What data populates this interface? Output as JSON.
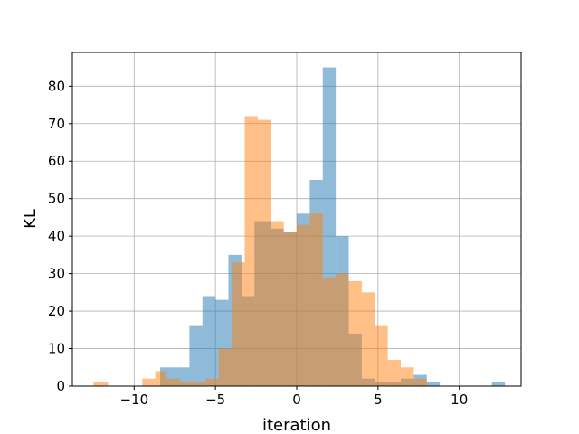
{
  "chart_data": {
    "type": "bar",
    "subtype": "overlapping-histogram",
    "title": "",
    "xlabel": "iteration",
    "ylabel": "KL",
    "xlim": [
      -13.8,
      13.8
    ],
    "ylim": [
      0,
      89
    ],
    "xticks": [
      -10,
      -5,
      0,
      5,
      10
    ],
    "yticks": [
      0,
      10,
      20,
      30,
      40,
      50,
      60,
      70,
      80
    ],
    "xtick_labels": [
      "−10",
      "−5",
      "0",
      "5",
      "10"
    ],
    "ytick_labels": [
      "0",
      "10",
      "20",
      "30",
      "40",
      "50",
      "60",
      "70",
      "80"
    ],
    "grid": true,
    "legend": "none",
    "series": [
      {
        "color": "#1f77b4",
        "alpha": 0.5,
        "bin_edges": [
          -8.4,
          -7.6,
          -6.6,
          -5.8,
          -5.0,
          -4.2,
          -3.4,
          -2.6,
          -1.6,
          -0.8,
          0.0,
          0.8,
          1.6,
          2.4,
          3.2,
          4.0,
          4.8,
          5.6,
          6.4,
          7.2,
          8.0,
          8.8,
          9.6,
          10.4,
          11.2,
          12.0,
          12.8
        ],
        "counts": [
          5,
          5,
          16,
          24,
          23,
          35,
          24,
          44,
          42,
          41,
          46,
          55,
          85,
          40,
          14,
          2,
          1,
          1,
          2,
          3,
          1,
          0,
          0,
          0,
          0,
          1
        ]
      },
      {
        "color": "#ff7f0e",
        "alpha": 0.5,
        "bin_edges": [
          -12.5,
          -11.6,
          -9.5,
          -8.7,
          -8.0,
          -7.2,
          -6.4,
          -5.6,
          -4.8,
          -4.0,
          -3.2,
          -2.4,
          -1.6,
          -0.8,
          0.0,
          0.8,
          1.6,
          2.4,
          3.2,
          4.0,
          4.8,
          5.6,
          6.4,
          7.2,
          8.0
        ],
        "counts": [
          1,
          0,
          2,
          4,
          2,
          1,
          1,
          2,
          10,
          33,
          72,
          71,
          44,
          41,
          43,
          46,
          29,
          30,
          28,
          25,
          16,
          7,
          5,
          2
        ]
      }
    ]
  }
}
